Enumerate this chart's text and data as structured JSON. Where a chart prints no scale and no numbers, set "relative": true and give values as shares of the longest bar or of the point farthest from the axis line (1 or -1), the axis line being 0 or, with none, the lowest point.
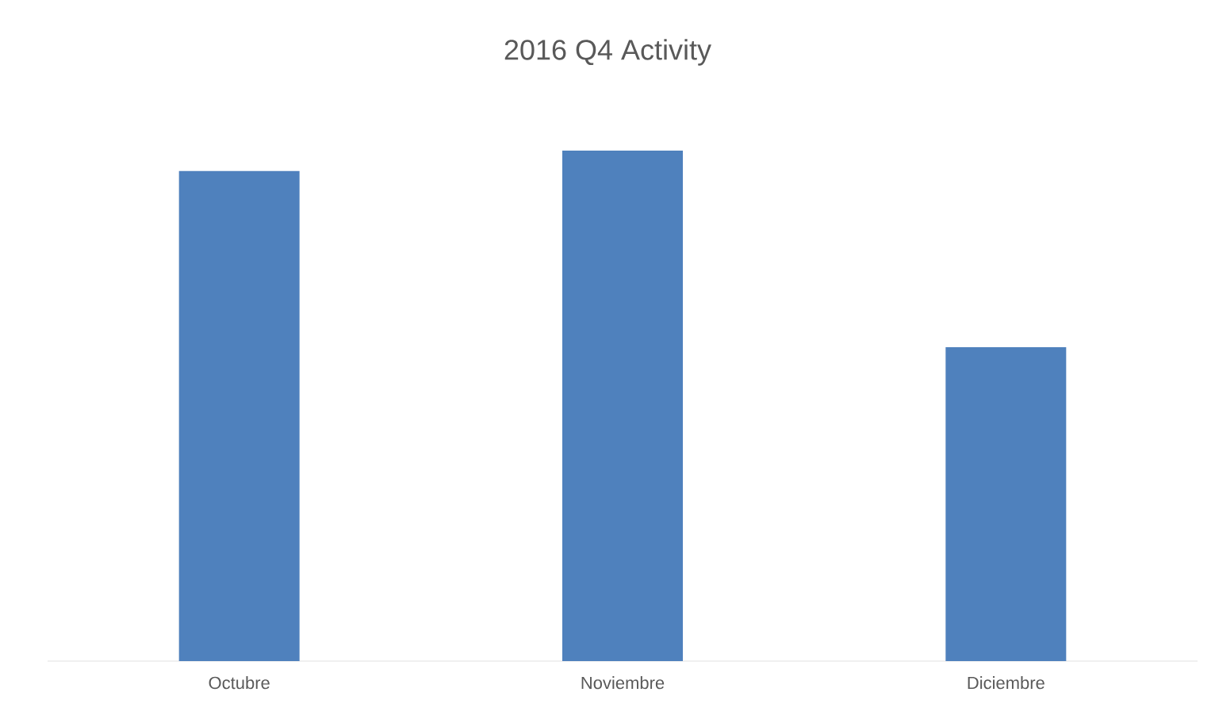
{
  "chart_data": {
    "type": "bar",
    "title": "2016 Q4 Activity",
    "categories": [
      "Octubre",
      "Noviembre",
      "Diciembre"
    ],
    "values": [
      0.96,
      1,
      0.615
    ],
    "color": "#4f81bd",
    "relative": true
  }
}
